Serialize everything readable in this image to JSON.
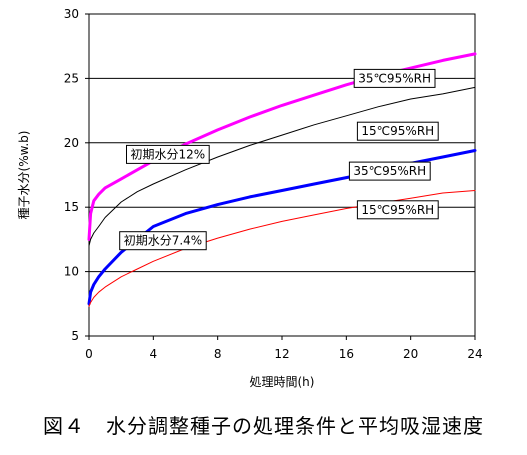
{
  "caption": "図４　水分調整種子の処理条件と平均吸湿速度",
  "chart_data": {
    "type": "line",
    "title": "",
    "xlabel": "処理時間(h)",
    "ylabel": "種子水分(%w.b)",
    "xlim": [
      0,
      24
    ],
    "ylim": [
      5,
      30
    ],
    "xticks": [
      0,
      4,
      8,
      12,
      16,
      20,
      24
    ],
    "yticks": [
      5,
      10,
      15,
      20,
      25,
      30
    ],
    "grid": "horizontal",
    "legend": "none",
    "series": [
      {
        "name": "35℃95%RH",
        "color": "#ff00ff",
        "stroke_width": 3,
        "x": [
          0,
          0.1,
          0.3,
          0.6,
          1,
          2,
          3,
          4,
          6,
          8,
          10,
          12,
          14,
          16,
          18,
          20,
          22,
          24
        ],
        "y": [
          12.5,
          14.5,
          15.5,
          16.0,
          16.5,
          17.2,
          17.9,
          18.6,
          19.9,
          21.0,
          22.0,
          22.9,
          23.7,
          24.5,
          25.2,
          25.8,
          26.4,
          26.9
        ]
      },
      {
        "name": "15℃95%RH",
        "color": "#000000",
        "stroke_width": 1,
        "x": [
          0,
          0.1,
          0.3,
          0.6,
          1,
          2,
          3,
          4,
          6,
          8,
          10,
          12,
          14,
          16,
          18,
          20,
          22,
          24
        ],
        "y": [
          12.0,
          12.5,
          13.0,
          13.5,
          14.2,
          15.4,
          16.2,
          16.8,
          17.9,
          18.9,
          19.8,
          20.6,
          21.4,
          22.1,
          22.8,
          23.4,
          23.8,
          24.3
        ]
      },
      {
        "name": "35℃95%RH",
        "color": "#0000ff",
        "stroke_width": 3,
        "x": [
          0,
          0.1,
          0.3,
          0.6,
          1,
          2,
          3,
          4,
          6,
          8,
          10,
          12,
          14,
          16,
          18,
          20,
          22,
          24
        ],
        "y": [
          7.5,
          8.4,
          9.0,
          9.6,
          10.2,
          11.5,
          12.5,
          13.5,
          14.5,
          15.2,
          15.8,
          16.3,
          16.8,
          17.3,
          17.8,
          18.4,
          18.9,
          19.4
        ]
      },
      {
        "name": "15℃95%RH",
        "color": "#ff0000",
        "stroke_width": 1,
        "x": [
          0,
          0.1,
          0.3,
          0.6,
          1,
          2,
          3,
          4,
          6,
          8,
          10,
          12,
          14,
          16,
          18,
          20,
          22,
          24
        ],
        "y": [
          7.3,
          7.6,
          8.0,
          8.4,
          8.8,
          9.6,
          10.2,
          10.8,
          11.8,
          12.6,
          13.3,
          13.9,
          14.4,
          14.9,
          15.3,
          15.7,
          16.1,
          16.3
        ]
      }
    ],
    "annotations": [
      {
        "text": "35℃95%RH",
        "x": 19.0,
        "y": 25.0,
        "anchor": "middle"
      },
      {
        "text": "15℃95%RH",
        "x": 19.2,
        "y": 20.9,
        "anchor": "middle"
      },
      {
        "text": "35℃95%RH",
        "x": 18.7,
        "y": 17.8,
        "anchor": "middle"
      },
      {
        "text": "15℃95%RH",
        "x": 19.2,
        "y": 14.8,
        "anchor": "middle"
      },
      {
        "text": "初期水分12%",
        "x": 4.9,
        "y": 19.1,
        "anchor": "middle"
      },
      {
        "text": "初期水分7.4%",
        "x": 4.6,
        "y": 12.4,
        "anchor": "middle"
      }
    ]
  }
}
